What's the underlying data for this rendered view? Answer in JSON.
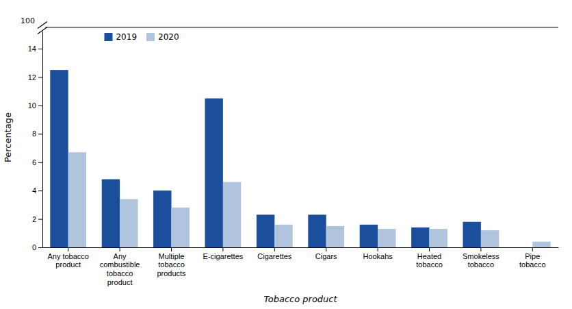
{
  "chart_data": {
    "type": "bar",
    "categories": [
      "Any tobacco\nproduct",
      "Any\ncombustible\ntobacco\nproduct",
      "Multiple\ntobacco\nproducts",
      "E-cigarettes",
      "Cigarettes",
      "Cigars",
      "Hookahs",
      "Heated\ntobacco",
      "Smokeless\ntobacco",
      "Pipe\ntobacco"
    ],
    "series": [
      {
        "name": "2019",
        "color": "#1B4F9B",
        "values": [
          12.5,
          4.8,
          4.0,
          10.5,
          2.3,
          2.3,
          1.6,
          1.4,
          1.8,
          0.0
        ]
      },
      {
        "name": "2020",
        "color": "#B0C4DE",
        "values": [
          6.7,
          3.4,
          2.8,
          4.6,
          1.6,
          1.5,
          1.3,
          1.3,
          1.2,
          0.4
        ]
      }
    ],
    "xlabel": "Tobacco product",
    "ylabel": "Percentage",
    "ylim": [
      0,
      15.5
    ],
    "yticks": [
      0,
      2,
      4,
      6,
      8,
      10,
      12,
      14
    ],
    "grid": false,
    "legend": "upper-left",
    "annotations": [
      {
        "text": "100"
      }
    ]
  }
}
